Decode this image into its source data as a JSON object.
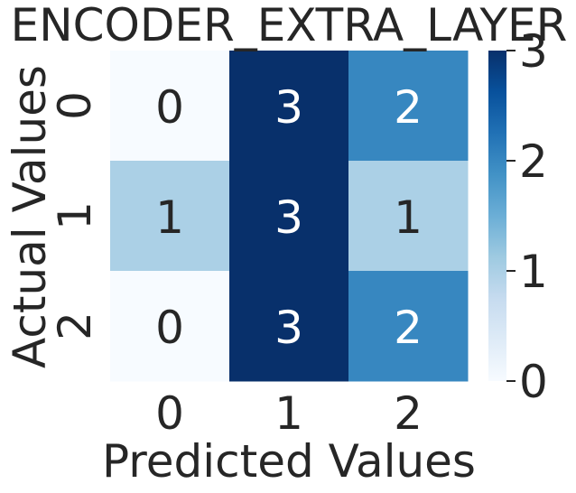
{
  "chart_data": {
    "type": "heatmap",
    "title": "ENCODER_EXTRA_LAYER",
    "xlabel": "Predicted Values",
    "ylabel": "Actual Values",
    "x_categories": [
      "0",
      "1",
      "2"
    ],
    "y_categories": [
      "0",
      "1",
      "2"
    ],
    "matrix": [
      [
        0,
        3,
        2
      ],
      [
        1,
        3,
        1
      ],
      [
        0,
        3,
        2
      ]
    ],
    "colorbar": {
      "min": 0,
      "max": 3,
      "ticks": [
        "0",
        "1",
        "2",
        "3"
      ],
      "colormap": "Blues"
    },
    "annotations": true
  }
}
